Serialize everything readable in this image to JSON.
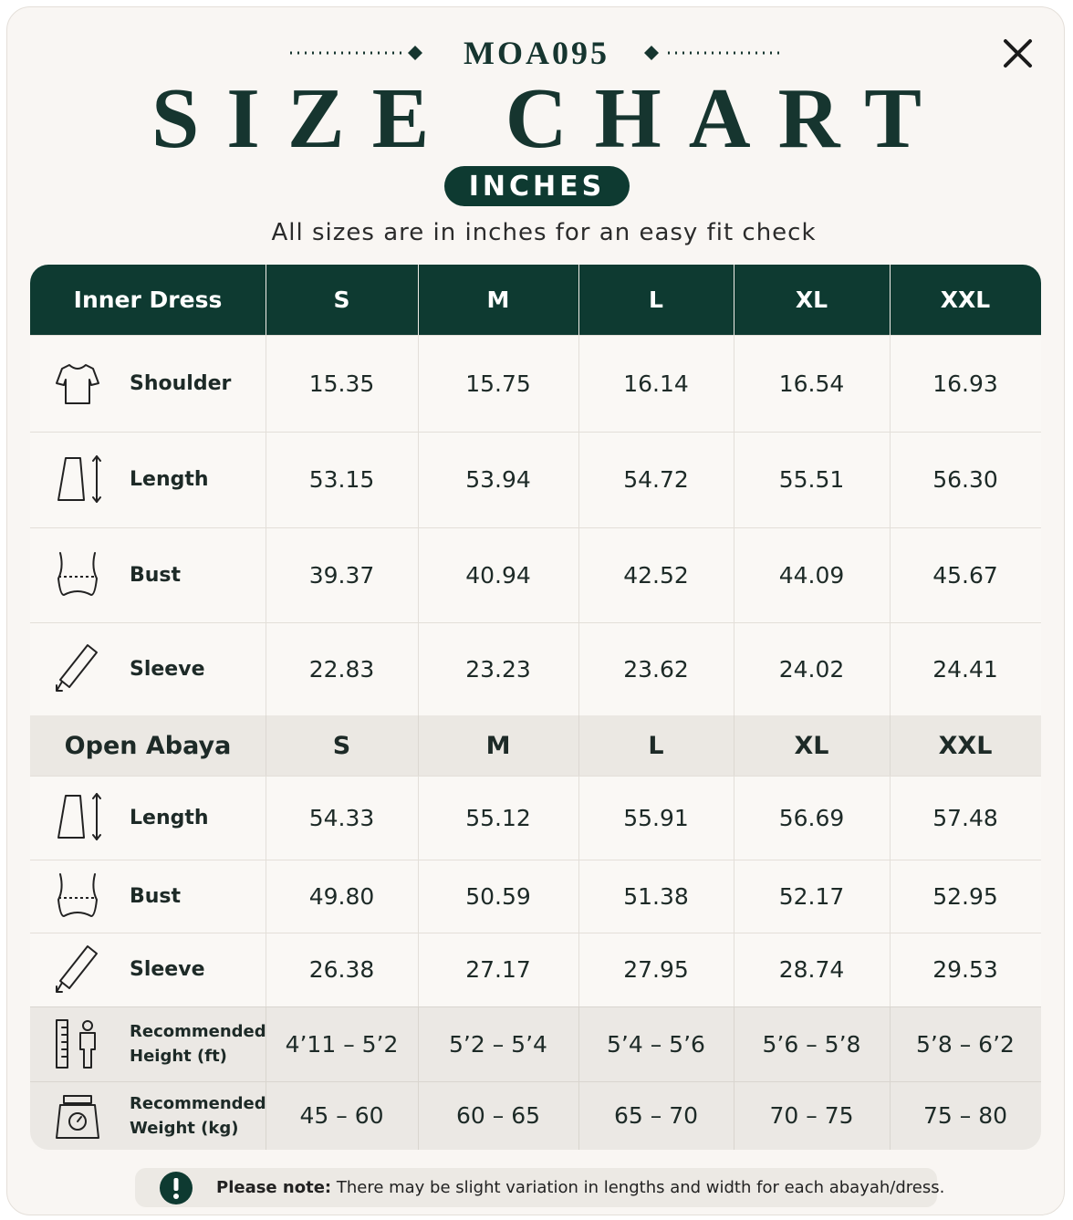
{
  "header": {
    "code": "MOA095",
    "title": "SIZE CHART",
    "unit": "INCHES",
    "subtitle": "All sizes are in inches for an easy fit check"
  },
  "table": {
    "sections": [
      {
        "name": "Inner Dress",
        "sizes": [
          "S",
          "M",
          "L",
          "XL",
          "XXL"
        ],
        "rows": [
          {
            "label": "Shoulder",
            "values": [
              "15.35",
              "15.75",
              "16.14",
              "16.54",
              "16.93"
            ]
          },
          {
            "label": "Length",
            "values": [
              "53.15",
              "53.94",
              "54.72",
              "55.51",
              "56.30"
            ]
          },
          {
            "label": "Bust",
            "values": [
              "39.37",
              "40.94",
              "42.52",
              "44.09",
              "45.67"
            ]
          },
          {
            "label": "Sleeve",
            "values": [
              "22.83",
              "23.23",
              "23.62",
              "24.02",
              "24.41"
            ]
          }
        ]
      },
      {
        "name": "Open Abaya",
        "sizes": [
          "S",
          "M",
          "L",
          "XL",
          "XXL"
        ],
        "rows": [
          {
            "label": "Length",
            "values": [
              "54.33",
              "55.12",
              "55.91",
              "56.69",
              "57.48"
            ]
          },
          {
            "label": "Bust",
            "values": [
              "49.80",
              "50.59",
              "51.38",
              "52.17",
              "52.95"
            ]
          },
          {
            "label": "Sleeve",
            "values": [
              "26.38",
              "27.17",
              "27.95",
              "28.74",
              "29.53"
            ]
          }
        ]
      }
    ],
    "recommendations": [
      {
        "label_lines": [
          "Recommended",
          "Height (ft)"
        ],
        "values": [
          "4’11 – 5’2",
          "5’2 – 5’4",
          "5’4 – 5’6",
          "5’6 – 5’8",
          "5’8 – 6’2"
        ]
      },
      {
        "label_lines": [
          "Recommended",
          "Weight (kg)"
        ],
        "values": [
          "45 – 60",
          "60 – 65",
          "65 – 70",
          "70 – 75",
          "75 – 80"
        ]
      }
    ]
  },
  "note": {
    "label": "Please note:",
    "text": "There may be slight variation in lengths and width for each abayah/dress."
  }
}
